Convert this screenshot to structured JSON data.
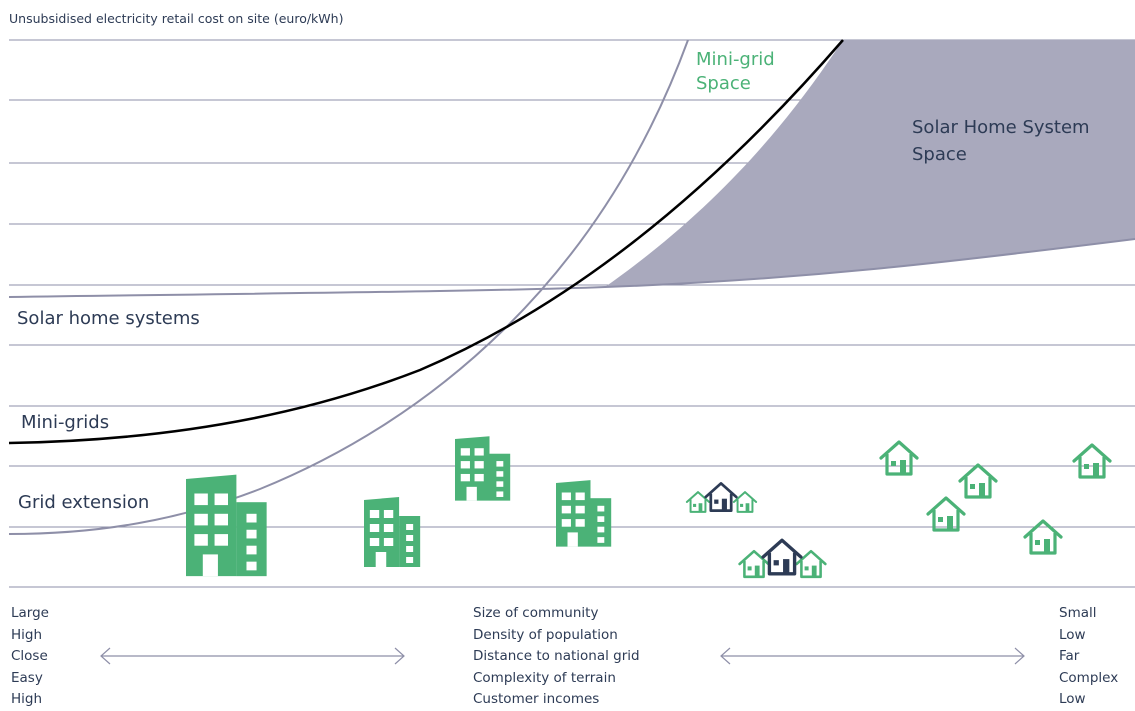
{
  "y_axis_label": "Unsubsidised electricity retail cost on site (euro/kWh)",
  "labels": {
    "mini_grid_space": [
      "Mini-grid",
      "Space"
    ],
    "solar_space": [
      "Solar Home System",
      "Space"
    ],
    "solar_home_systems": "Solar home systems",
    "mini_grids": "Mini-grids",
    "grid_extension": "Grid extension"
  },
  "axis": {
    "left_values": [
      "Large",
      "High",
      "Close",
      "Easy",
      "High"
    ],
    "center_factors": [
      "Size of community",
      "Density of population",
      "Distance to national grid",
      "Complexity of terrain",
      "Customer incomes"
    ],
    "right_values": [
      "Small",
      "Low",
      "Far",
      "Complex",
      "Low"
    ]
  },
  "colors": {
    "green": "#4bb277",
    "dark": "#2d3b55",
    "shaded": "#a9a9bd",
    "curve_gray": "#8e8fa8"
  },
  "icons": [
    "building-icon",
    "house-icon",
    "house-cluster-icon",
    "double-arrow-icon"
  ]
}
